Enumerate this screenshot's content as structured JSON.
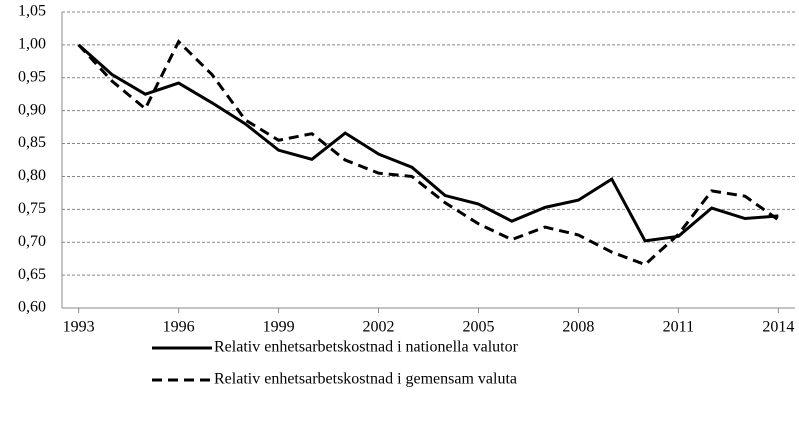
{
  "chart_data": {
    "type": "line",
    "x": [
      1993,
      1994,
      1995,
      1996,
      1997,
      1998,
      1999,
      2000,
      2001,
      2002,
      2003,
      2004,
      2005,
      2006,
      2007,
      2008,
      2009,
      2010,
      2011,
      2012,
      2013,
      2014
    ],
    "series": [
      {
        "name": "Relativ enhetsarbetskostnad i nationella valutor",
        "color": "#000000",
        "dash": "solid",
        "values": [
          1.0,
          0.955,
          0.925,
          0.942,
          0.912,
          0.88,
          0.84,
          0.826,
          0.866,
          0.834,
          0.814,
          0.771,
          0.758,
          0.732,
          0.753,
          0.764,
          0.796,
          0.702,
          0.709,
          0.752,
          0.736,
          0.74
        ]
      },
      {
        "name": "Relativ enhetsarbetskostnad i gemensam valuta",
        "color": "#000000",
        "dash": "dashed",
        "values": [
          1.0,
          0.945,
          0.903,
          1.005,
          0.955,
          0.886,
          0.855,
          0.865,
          0.825,
          0.805,
          0.8,
          0.76,
          0.728,
          0.704,
          0.723,
          0.711,
          0.685,
          0.666,
          0.712,
          0.778,
          0.77,
          0.734
        ]
      }
    ],
    "xlim": [
      1992.5,
      2014.5
    ],
    "xticks": [
      1993,
      1996,
      1999,
      2002,
      2005,
      2008,
      2011,
      2014
    ],
    "ylim": [
      0.6,
      1.05
    ],
    "yticks": [
      {
        "value": 0.6,
        "label": "0,60"
      },
      {
        "value": 0.65,
        "label": "0,65"
      },
      {
        "value": 0.7,
        "label": "0,70"
      },
      {
        "value": 0.75,
        "label": "0,75"
      },
      {
        "value": 0.8,
        "label": "0,80"
      },
      {
        "value": 0.85,
        "label": "0,85"
      },
      {
        "value": 0.9,
        "label": "0,90"
      },
      {
        "value": 0.95,
        "label": "0,95"
      },
      {
        "value": 1.0,
        "label": "1,00"
      },
      {
        "value": 1.05,
        "label": "1,05"
      }
    ],
    "grid": true,
    "legend": "bottom"
  }
}
